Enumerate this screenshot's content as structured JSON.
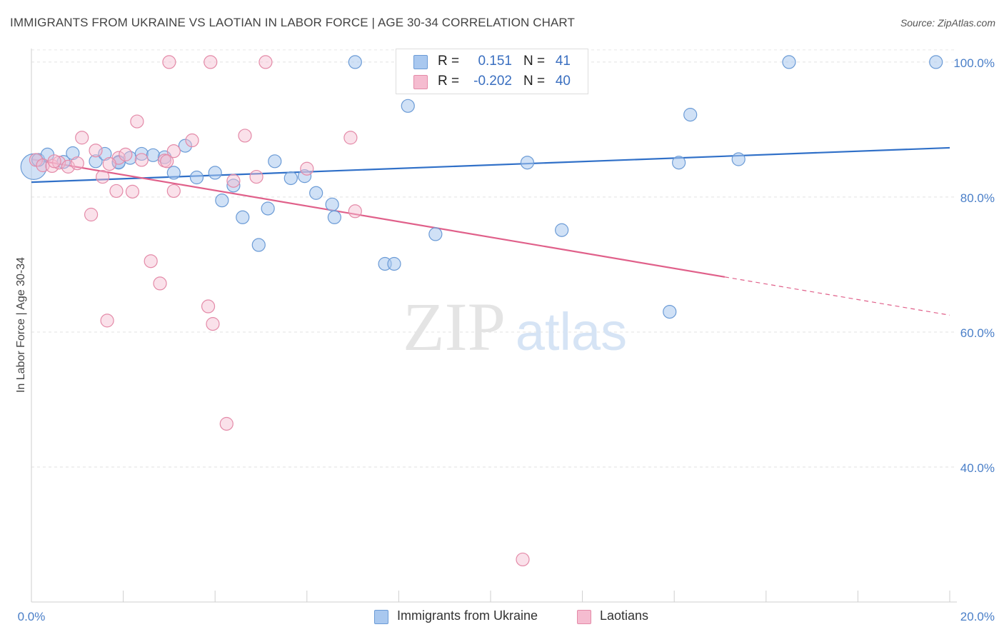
{
  "title": "IMMIGRANTS FROM UKRAINE VS LAOTIAN IN LABOR FORCE | AGE 30-34 CORRELATION CHART",
  "source": "Source: ZipAtlas.com",
  "watermark": {
    "zip": "ZIP",
    "atlas": "atlas"
  },
  "colors": {
    "ukraine_fill": "#a9c8ef",
    "ukraine_stroke": "#6b9bd6",
    "ukraine_line": "#3070c8",
    "laotian_fill": "#f5bcd0",
    "laotian_stroke": "#e48aa8",
    "laotian_line": "#e0608a",
    "tick_label": "#4a7fc8"
  },
  "legend": {
    "rows": [
      {
        "r_label": "R =",
        "r_value": "0.151",
        "n_label": "N =",
        "n_value": "41"
      },
      {
        "r_label": "R =",
        "r_value": "-0.202",
        "n_label": "N =",
        "n_value": "40"
      }
    ],
    "bottom": [
      "Immigrants from Ukraine",
      "Laotians"
    ]
  },
  "chart_data": {
    "type": "scatter",
    "xlabel": "",
    "ylabel": "In Labor Force | Age 30-34",
    "xlim": [
      0,
      20
    ],
    "ylim": [
      20,
      102
    ],
    "x_tick_labels": [
      "0.0%",
      "20.0%"
    ],
    "y_ticks": [
      40,
      60,
      80,
      100
    ],
    "y_tick_labels": [
      "40.0%",
      "60.0%",
      "80.0%",
      "100.0%"
    ],
    "grid": true,
    "series": [
      {
        "name": "Immigrants from Ukraine",
        "r": 0.151,
        "n": 41,
        "trend": {
          "x": [
            0,
            20
          ],
          "y": [
            82.2,
            87.3
          ],
          "solid_until": 20
        },
        "points": [
          [
            0.05,
            84.5
          ],
          [
            0.15,
            85.5
          ],
          [
            0.35,
            86.3
          ],
          [
            0.7,
            85.2
          ],
          [
            0.9,
            86.5
          ],
          [
            1.4,
            85.3
          ],
          [
            1.6,
            86.4
          ],
          [
            1.9,
            85.2
          ],
          [
            2.15,
            85.8
          ],
          [
            2.4,
            86.4
          ],
          [
            2.65,
            86.2
          ],
          [
            2.9,
            85.9
          ],
          [
            3.1,
            83.6
          ],
          [
            3.35,
            87.6
          ],
          [
            3.6,
            82.9
          ],
          [
            4.0,
            83.6
          ],
          [
            4.15,
            79.5
          ],
          [
            4.4,
            81.7
          ],
          [
            4.6,
            77.0
          ],
          [
            4.95,
            72.9
          ],
          [
            5.15,
            78.3
          ],
          [
            5.3,
            85.3
          ],
          [
            5.65,
            82.8
          ],
          [
            5.95,
            83.1
          ],
          [
            6.2,
            80.6
          ],
          [
            6.55,
            78.9
          ],
          [
            6.6,
            77.0
          ],
          [
            7.05,
            100.0
          ],
          [
            7.7,
            70.1
          ],
          [
            7.9,
            70.1
          ],
          [
            8.2,
            93.5
          ],
          [
            8.8,
            74.5
          ],
          [
            10.8,
            85.1
          ],
          [
            11.55,
            75.1
          ],
          [
            13.9,
            63.0
          ],
          [
            14.1,
            85.1
          ],
          [
            14.35,
            92.2
          ],
          [
            15.4,
            85.6
          ],
          [
            16.5,
            100.0
          ],
          [
            19.7,
            100.0
          ],
          [
            1.9,
            85.1
          ]
        ]
      },
      {
        "name": "Laotians",
        "r": -0.202,
        "n": 40,
        "trend": {
          "x": [
            0,
            20
          ],
          "y": [
            85.6,
            62.5
          ],
          "solid_until": 15.1
        },
        "points": [
          [
            0.1,
            85.5
          ],
          [
            0.25,
            84.7
          ],
          [
            0.45,
            84.6
          ],
          [
            0.6,
            85.1
          ],
          [
            0.8,
            84.5
          ],
          [
            1.0,
            85.0
          ],
          [
            1.1,
            88.8
          ],
          [
            1.3,
            77.4
          ],
          [
            1.4,
            86.9
          ],
          [
            1.55,
            83.0
          ],
          [
            1.65,
            61.7
          ],
          [
            1.85,
            80.9
          ],
          [
            1.9,
            85.8
          ],
          [
            2.05,
            86.3
          ],
          [
            2.2,
            80.8
          ],
          [
            2.3,
            91.2
          ],
          [
            2.4,
            85.5
          ],
          [
            2.6,
            70.5
          ],
          [
            2.8,
            67.2
          ],
          [
            2.9,
            85.4
          ],
          [
            3.1,
            80.9
          ],
          [
            3.0,
            100.0
          ],
          [
            3.1,
            86.8
          ],
          [
            3.5,
            88.4
          ],
          [
            3.9,
            100.0
          ],
          [
            3.85,
            63.8
          ],
          [
            3.95,
            61.2
          ],
          [
            4.25,
            46.4
          ],
          [
            4.4,
            82.4
          ],
          [
            4.65,
            89.1
          ],
          [
            4.9,
            83.0
          ],
          [
            5.1,
            100.0
          ],
          [
            6.0,
            84.2
          ],
          [
            6.95,
            88.8
          ],
          [
            7.05,
            77.9
          ],
          [
            8.1,
            100.0
          ],
          [
            10.7,
            26.3
          ],
          [
            1.7,
            84.9
          ],
          [
            2.95,
            85.3
          ],
          [
            0.5,
            85.3
          ]
        ]
      }
    ]
  }
}
